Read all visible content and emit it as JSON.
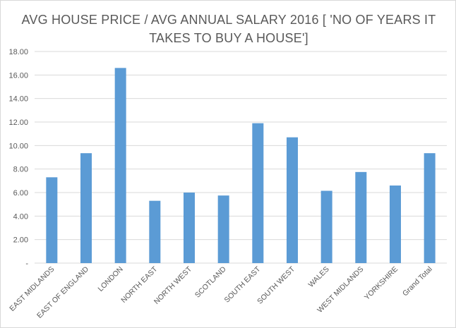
{
  "chart_data": {
    "type": "bar",
    "title_line1": "AVG HOUSE PRICE / AVG ANNUAL SALARY 2016 [ 'NO OF YEARS IT",
    "title_line2": "TAKES TO BUY A HOUSE']",
    "categories": [
      "EAST MIDLANDS",
      "EAST OF ENGLAND",
      "LONDON",
      "NORTH EAST",
      "NORTH WEST",
      "SCOTLAND",
      "SOUTH EAST",
      "SOUTH WEST",
      "WALES",
      "WEST MIDLANDS",
      "YORKSHIRE",
      "Grand Total"
    ],
    "values": [
      7.3,
      9.35,
      16.6,
      5.3,
      6.0,
      5.75,
      11.9,
      10.7,
      6.15,
      7.75,
      6.6,
      9.35
    ],
    "y_ticks": [
      "-",
      "2.00",
      "4.00",
      "6.00",
      "8.00",
      "10.00",
      "12.00",
      "14.00",
      "16.00",
      "18.00"
    ],
    "ylim": [
      0,
      18
    ],
    "grid": true,
    "bar_color": "#5b9bd5",
    "grid_color": "#d9d9d9"
  }
}
